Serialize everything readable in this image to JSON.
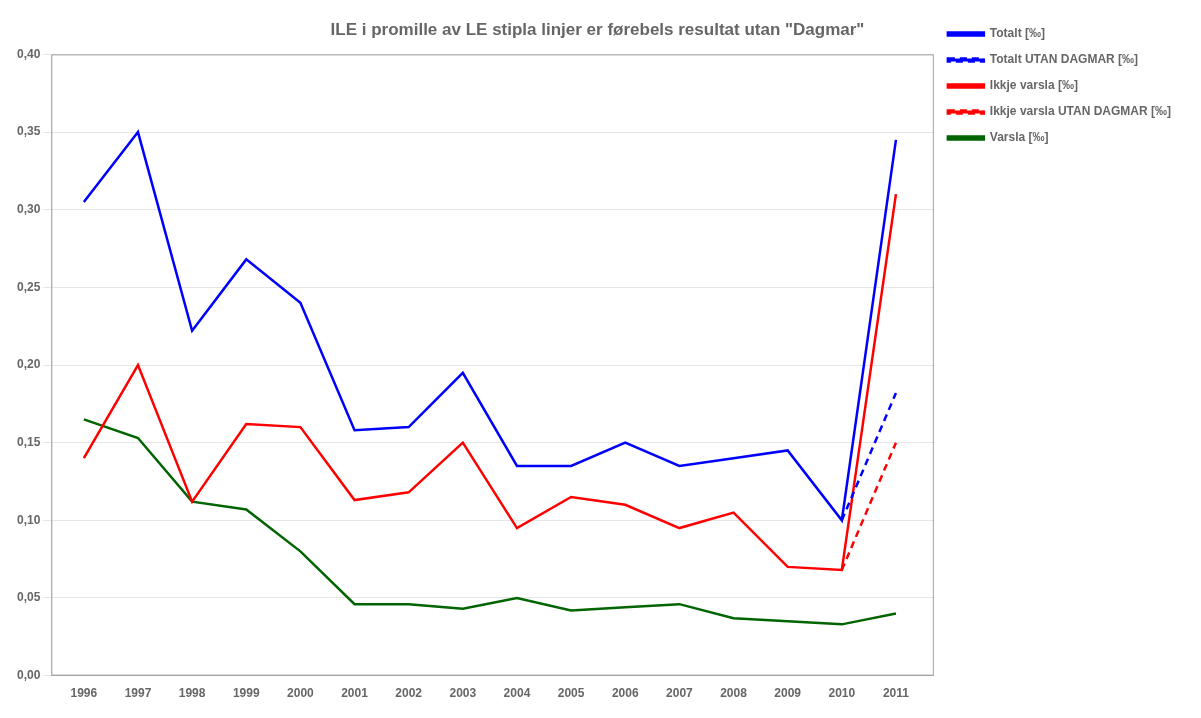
{
  "chart_data": {
    "type": "line",
    "title": "ILE i promille av LE stipla linjer er førebels resultat utan \"Dagmar\"",
    "x": [
      1996,
      1997,
      1998,
      1999,
      2000,
      2001,
      2002,
      2003,
      2004,
      2005,
      2006,
      2007,
      2008,
      2009,
      2010,
      2011
    ],
    "series": [
      {
        "name": "Totalt [‰]",
        "color": "#0000FF",
        "line_style": "solid",
        "values": [
          0.305,
          0.35,
          0.222,
          0.268,
          0.24,
          0.158,
          0.16,
          0.195,
          0.135,
          0.135,
          0.15,
          0.135,
          0.14,
          0.145,
          0.1,
          0.345
        ]
      },
      {
        "name": "Totalt UTAN DAGMAR [‰]",
        "color": "#0000FF",
        "line_style": "dashed",
        "x": [
          2010,
          2011
        ],
        "values": [
          0.1,
          0.182
        ]
      },
      {
        "name": "Ikkje varsla [‰]",
        "color": "#FF0000",
        "line_style": "solid",
        "values": [
          0.14,
          0.2,
          0.112,
          0.162,
          0.16,
          0.113,
          0.118,
          0.15,
          0.095,
          0.115,
          0.11,
          0.095,
          0.105,
          0.07,
          0.068,
          0.31
        ]
      },
      {
        "name": "Ikkje varsla UTAN DAGMAR [‰]",
        "color": "#FF0000",
        "line_style": "dashed",
        "x": [
          2010,
          2011
        ],
        "values": [
          0.068,
          0.15
        ]
      },
      {
        "name": "Varsla [‰]",
        "color": "#006400",
        "line_style": "solid",
        "values": [
          0.165,
          0.153,
          0.112,
          0.107,
          0.08,
          0.046,
          0.046,
          0.043,
          0.05,
          0.042,
          0.044,
          0.046,
          0.037,
          0.035,
          0.033,
          0.04
        ]
      }
    ],
    "xlim": [
      1995.4,
      2011.7
    ],
    "xticks": [
      1996,
      1997,
      1998,
      1999,
      2000,
      2001,
      2002,
      2003,
      2004,
      2005,
      2006,
      2007,
      2008,
      2009,
      2010,
      2011
    ],
    "ylim": [
      0.0,
      0.4
    ],
    "yticks": [
      {
        "value": 0.0,
        "label": "0,00"
      },
      {
        "value": 0.05,
        "label": "0,05"
      },
      {
        "value": 0.1,
        "label": "0,10"
      },
      {
        "value": 0.15,
        "label": "0,15"
      },
      {
        "value": 0.2,
        "label": "0,20"
      },
      {
        "value": 0.25,
        "label": "0,25"
      },
      {
        "value": 0.3,
        "label": "0,30"
      },
      {
        "value": 0.35,
        "label": "0,35"
      },
      {
        "value": 0.4,
        "label": "0,40"
      }
    ],
    "grid": "y",
    "legend": "upper right"
  }
}
